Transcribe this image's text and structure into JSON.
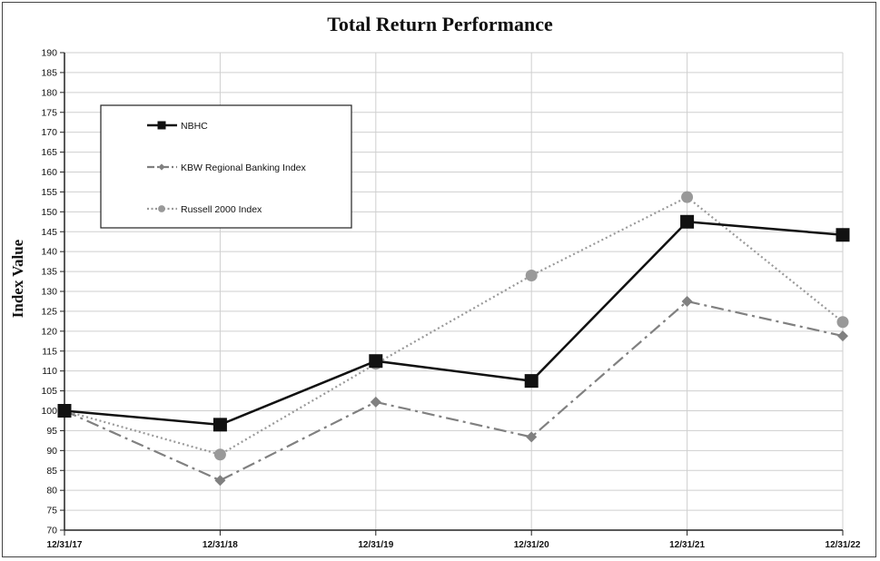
{
  "chart_data": {
    "type": "line",
    "title": "Total Return Performance",
    "ylabel": "Index Value",
    "xlabel": "",
    "ylim": [
      70,
      190
    ],
    "y_ticks": [
      70,
      75,
      80,
      85,
      90,
      95,
      100,
      105,
      110,
      115,
      120,
      125,
      130,
      135,
      140,
      145,
      150,
      155,
      160,
      165,
      170,
      175,
      180,
      185,
      190
    ],
    "categories": [
      "12/31/17",
      "12/31/18",
      "12/31/19",
      "12/31/20",
      "12/31/21",
      "12/31/22"
    ],
    "grid": "horizontal",
    "legend_position": "top-left",
    "series": [
      {
        "name": "NBHC",
        "values": [
          100,
          96.5,
          112.5,
          107.5,
          147.5,
          144.2
        ],
        "color": "#111111",
        "style": "solid",
        "marker": "square"
      },
      {
        "name": "KBW Regional Banking Index",
        "values": [
          100,
          82.5,
          102.2,
          93.4,
          127.5,
          118.8
        ],
        "color": "#808080",
        "style": "dashdot",
        "marker": "diamond"
      },
      {
        "name": "Russell 2000 Index",
        "values": [
          100,
          89.0,
          111.8,
          134.0,
          153.7,
          122.3
        ],
        "color": "#999999",
        "style": "dotted",
        "marker": "circle"
      }
    ]
  }
}
